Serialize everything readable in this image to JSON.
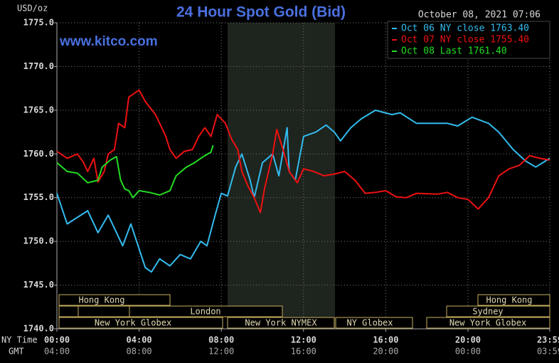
{
  "chart_data": {
    "type": "line",
    "title": "24 Hour Spot Gold (Bid)",
    "y_label": "USD/oz",
    "timestamp": "October 08, 2021 07:06",
    "watermark": "www.kitco.com",
    "x_row_label": "NY Time",
    "x2_row_label": "GMT",
    "grid": true,
    "xlim": [
      0,
      23.98
    ],
    "ylim": [
      1740,
      1775
    ],
    "yticks": [
      {
        "value": 1740,
        "label": "1740.0"
      },
      {
        "value": 1745,
        "label": "1745.0"
      },
      {
        "value": 1750,
        "label": "1750.0"
      },
      {
        "value": 1755,
        "label": "1755.0"
      },
      {
        "value": 1760,
        "label": "1760.0"
      },
      {
        "value": 1765,
        "label": "1765.0"
      },
      {
        "value": 1770,
        "label": "1770.0"
      },
      {
        "value": 1775,
        "label": "1775.0"
      }
    ],
    "xticks": [
      {
        "value": 0,
        "label": "00:00"
      },
      {
        "value": 4,
        "label": "04:00"
      },
      {
        "value": 8,
        "label": "08:00"
      },
      {
        "value": 12,
        "label": "12:00"
      },
      {
        "value": 16,
        "label": "16:00"
      },
      {
        "value": 20,
        "label": "20:00"
      },
      {
        "value": 23.98,
        "label": "23:59"
      }
    ],
    "x2tick_labels": [
      "04:00",
      "08:00",
      "12:00",
      "16:00",
      "20:00",
      "00:00",
      "03:59"
    ],
    "sessions": [
      "Hong Kong",
      "London",
      "New York Globex",
      "New York NYMEX",
      "NY Globex",
      "Hong Kong",
      "Sydney",
      "New York Globex"
    ],
    "series": [
      {
        "name": "Oct 06 NY close 1763.40",
        "color": "#33bbee",
        "x": [
          0,
          0.5,
          1.5,
          2,
          2.5,
          3.2,
          3.6,
          4.3,
          4.6,
          5,
          5.5,
          6,
          6.5,
          7,
          7.3,
          7.7,
          8,
          8.3,
          8.7,
          9,
          9.4,
          9.6,
          10,
          10.5,
          10.8,
          11.2,
          11.3,
          11.6,
          12,
          12.6,
          13.1,
          13.5,
          13.8,
          14.3,
          14.8,
          15.5,
          16.3,
          16.7,
          17.5,
          19,
          19.5,
          20.2,
          21,
          21.5,
          22.2,
          22.8,
          23.3,
          23.98
        ],
        "values": [
          1755.5,
          1752,
          1753.5,
          1751,
          1753,
          1749.5,
          1752,
          1747,
          1746.5,
          1748,
          1747.2,
          1748.5,
          1748,
          1750,
          1749.5,
          1753,
          1755.5,
          1755.2,
          1758.5,
          1760,
          1757,
          1755,
          1759,
          1760,
          1757.5,
          1763,
          1758,
          1757,
          1762,
          1762.5,
          1763.3,
          1762.5,
          1761.5,
          1763,
          1764,
          1765,
          1764.5,
          1764.7,
          1763.5,
          1763.5,
          1763.2,
          1764.2,
          1763.5,
          1762.5,
          1760.5,
          1759.2,
          1758.5,
          1759.5
        ]
      },
      {
        "name": "Oct 07 NY close 1755.40",
        "color": "#ee1111",
        "x": [
          0,
          0.5,
          1,
          1.3,
          1.5,
          1.8,
          2,
          2.3,
          2.5,
          2.8,
          3,
          3.3,
          3.5,
          4,
          4.3,
          4.8,
          5.3,
          5.5,
          5.8,
          6.2,
          6.6,
          6.9,
          7.2,
          7.5,
          7.8,
          8.2,
          8.5,
          8.8,
          9,
          9.3,
          9.6,
          9.9,
          10.1,
          10.5,
          10.7,
          11,
          11.3,
          11.7,
          12,
          12.5,
          13,
          13.5,
          14,
          14.5,
          15,
          15.5,
          16,
          16.5,
          17,
          17.5,
          18.5,
          19,
          19.5,
          20,
          20.5,
          21,
          21.5,
          22,
          22.5,
          23,
          23.5,
          23.98
        ],
        "values": [
          1760.3,
          1759.5,
          1760,
          1759,
          1758,
          1759.5,
          1756.8,
          1758,
          1760,
          1760.5,
          1763.5,
          1763,
          1766.5,
          1767.3,
          1766,
          1764.5,
          1762,
          1760.5,
          1759.5,
          1760.3,
          1760.5,
          1762,
          1763,
          1762,
          1764.5,
          1763.5,
          1761.7,
          1760.5,
          1758,
          1756.3,
          1755,
          1753.3,
          1756,
          1760,
          1762.8,
          1760.5,
          1758,
          1756.7,
          1758.3,
          1758,
          1757.5,
          1757.7,
          1758,
          1757,
          1755.5,
          1755.6,
          1755.8,
          1755.1,
          1755,
          1755.5,
          1755.4,
          1755.6,
          1755,
          1754.8,
          1753.7,
          1755,
          1757.5,
          1758.3,
          1758.7,
          1759.8,
          1759.5,
          1759.3
        ]
      },
      {
        "name": "Oct 08 Last 1761.40",
        "color": "#22dd22",
        "x": [
          0,
          0.5,
          1,
          1.5,
          2,
          2.2,
          2.6,
          2.9,
          3.1,
          3.3,
          3.5,
          3.7,
          4,
          4.5,
          5,
          5.5,
          5.8,
          6.3,
          6.7,
          7,
          7.2,
          7.5,
          7.6
        ],
        "values": [
          1759,
          1758,
          1757.8,
          1756.7,
          1757,
          1758.5,
          1759.3,
          1759.7,
          1757,
          1756,
          1755.8,
          1755,
          1755.8,
          1755.6,
          1755.3,
          1755.8,
          1757.5,
          1758.5,
          1759,
          1759.5,
          1759.8,
          1760.2,
          1761
        ]
      }
    ]
  }
}
